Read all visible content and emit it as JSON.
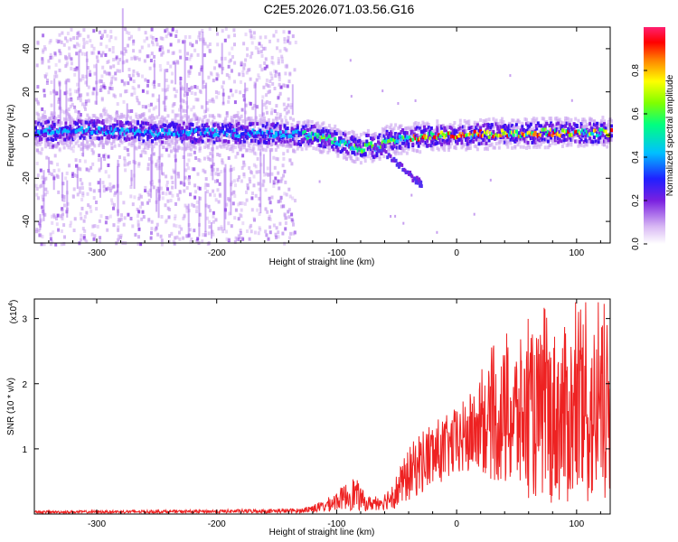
{
  "title": "C2E5.2026.071.03.56.G16",
  "colors": {
    "snr_line": "#ee2222",
    "axis": "#000000"
  },
  "chart_data": [
    {
      "type": "heatmap",
      "name": "spectrogram",
      "xlabel": "Height of straight line (km)",
      "ylabel": "Frequency (Hz)",
      "xlim": [
        -352,
        128
      ],
      "ylim": [
        -50,
        50
      ],
      "x_ticks": [
        -300,
        -200,
        -100,
        0,
        100
      ],
      "y_ticks": [
        -40,
        -20,
        0,
        20,
        40
      ],
      "colorbar": {
        "label": "Normalized spectral amplitude",
        "range": [
          0,
          1
        ],
        "ticks": [
          "0.0",
          "0.2",
          "0.4",
          "0.6",
          "0.8"
        ],
        "tick_values": [
          0.0,
          0.2,
          0.4,
          0.6,
          0.8
        ],
        "colormap": [
          "#ffffff",
          "#c8a0f0",
          "#7a20e0",
          "#2020ff",
          "#00c0ff",
          "#00ff80",
          "#80ff00",
          "#ffff00",
          "#ff8000",
          "#ff0000",
          "#ff2060"
        ]
      },
      "ridge": {
        "description_values": "dominant frequency track",
        "points": [
          [
            -352,
            3
          ],
          [
            -300,
            3
          ],
          [
            -250,
            2
          ],
          [
            -200,
            2
          ],
          [
            -150,
            1.5
          ],
          [
            -120,
            0.5
          ],
          [
            -100,
            -2
          ],
          [
            -90,
            -4
          ],
          [
            -80,
            -6
          ],
          [
            -75,
            -3
          ],
          [
            -70,
            -5
          ],
          [
            -60,
            -2
          ],
          [
            -50,
            -1
          ],
          [
            -30,
            0
          ],
          [
            0,
            1
          ],
          [
            40,
            1.5
          ],
          [
            80,
            2
          ],
          [
            128,
            2
          ]
        ]
      },
      "branch": {
        "points": [
          [
            -70,
            -4
          ],
          [
            -55,
            -10
          ],
          [
            -45,
            -15
          ],
          [
            -35,
            -20
          ],
          [
            -30,
            -22
          ]
        ]
      }
    },
    {
      "type": "line",
      "name": "snr",
      "xlabel": "Height of straight line (km)",
      "ylabel": "SNR (10 * v/v)",
      "y_multiplier": "(x10",
      "y_multiplier_exp": "4",
      "y_multiplier_close": ")",
      "xlim": [
        -352,
        128
      ],
      "ylim": [
        0,
        3.3
      ],
      "x_ticks": [
        -300,
        -200,
        -100,
        0,
        100
      ],
      "y_ticks": [
        1,
        2,
        3
      ],
      "envelope_x": [
        -352,
        -200,
        -130,
        -110,
        -95,
        -85,
        -75,
        -60,
        -50,
        -40,
        -30,
        -20,
        -10,
        0,
        10,
        20,
        30,
        40,
        60,
        80,
        100,
        115,
        128
      ],
      "envelope_y": [
        0.03,
        0.04,
        0.05,
        0.12,
        0.25,
        0.32,
        0.15,
        0.2,
        0.35,
        0.6,
        0.8,
        0.9,
        1.0,
        1.1,
        1.2,
        1.35,
        1.4,
        1.45,
        1.5,
        1.5,
        1.5,
        1.5,
        1.5
      ],
      "amplitude_y": [
        0.02,
        0.03,
        0.04,
        0.1,
        0.2,
        0.3,
        0.12,
        0.15,
        0.3,
        0.45,
        0.55,
        0.6,
        0.55,
        0.6,
        0.7,
        0.8,
        1.0,
        1.2,
        1.4,
        1.5,
        1.55,
        1.6,
        1.6
      ]
    }
  ]
}
